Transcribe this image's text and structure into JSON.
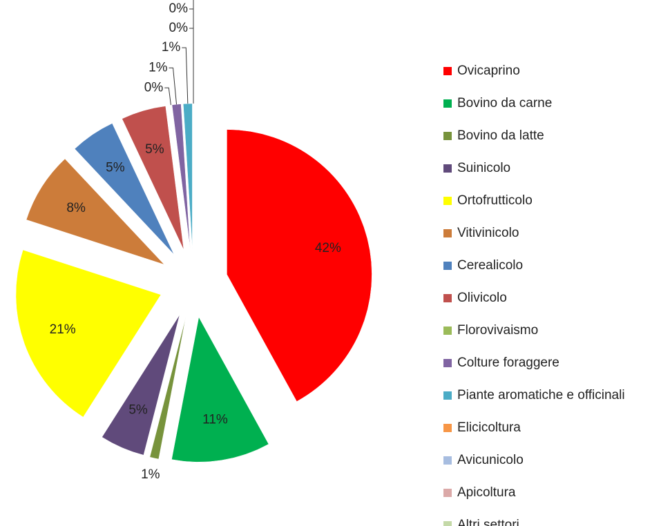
{
  "chart_data": {
    "type": "pie",
    "categories": [
      "Ovicaprino",
      "Bovino da carne",
      "Bovino da latte",
      "Suinicolo",
      "Ortofrutticolo",
      "Vitivinicolo",
      "Cerealicolo",
      "Olivicolo",
      "Florovivaismo",
      "Colture foraggere",
      "Piante aromatiche e officinali",
      "Elicicoltura",
      "Avicunicolo",
      "Apicoltura",
      "Altri settori"
    ],
    "values": [
      42,
      11,
      1,
      5,
      21,
      8,
      5,
      5,
      0,
      1,
      1,
      0,
      0,
      0,
      0
    ],
    "value_labels": [
      "42%",
      "11%",
      "1%",
      "5%",
      "21%",
      "8%",
      "5%",
      "5%",
      "0%",
      "1%",
      "1%",
      "0%",
      "0%",
      "0%",
      "0%"
    ],
    "colors": [
      "#ff0000",
      "#00b050",
      "#77933c",
      "#604a7b",
      "#ffff00",
      "#cc7c3a",
      "#4f81bd",
      "#c0504d",
      "#9bbb59",
      "#8064a2",
      "#4bacc6",
      "#f79646",
      "#a7bde0",
      "#dba9a8",
      "#c4d9a8"
    ],
    "legend": "right"
  }
}
